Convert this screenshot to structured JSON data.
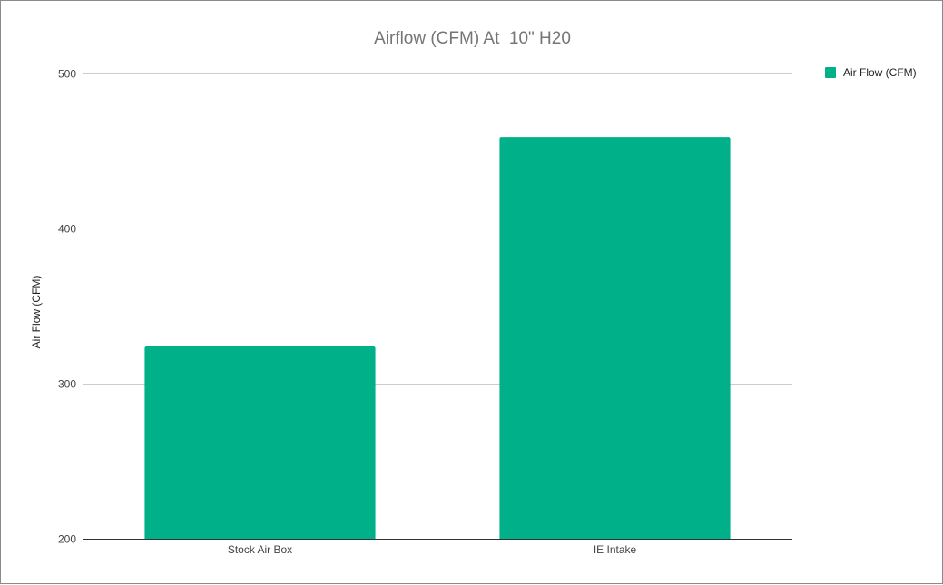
{
  "chart_data": {
    "type": "bar",
    "title": "Airflow (CFM) At  10\" H20",
    "xlabel": "",
    "ylabel": "Air Flow (CFM)",
    "categories": [
      "Stock Air Box",
      "IE Intake"
    ],
    "series": [
      {
        "name": "Air Flow (CFM)",
        "values": [
          324,
          459
        ],
        "color": "#00b088"
      }
    ],
    "ylim": [
      200,
      500
    ],
    "yticks": [
      200,
      300,
      400,
      500
    ],
    "grid": true,
    "legend_position": "right"
  }
}
